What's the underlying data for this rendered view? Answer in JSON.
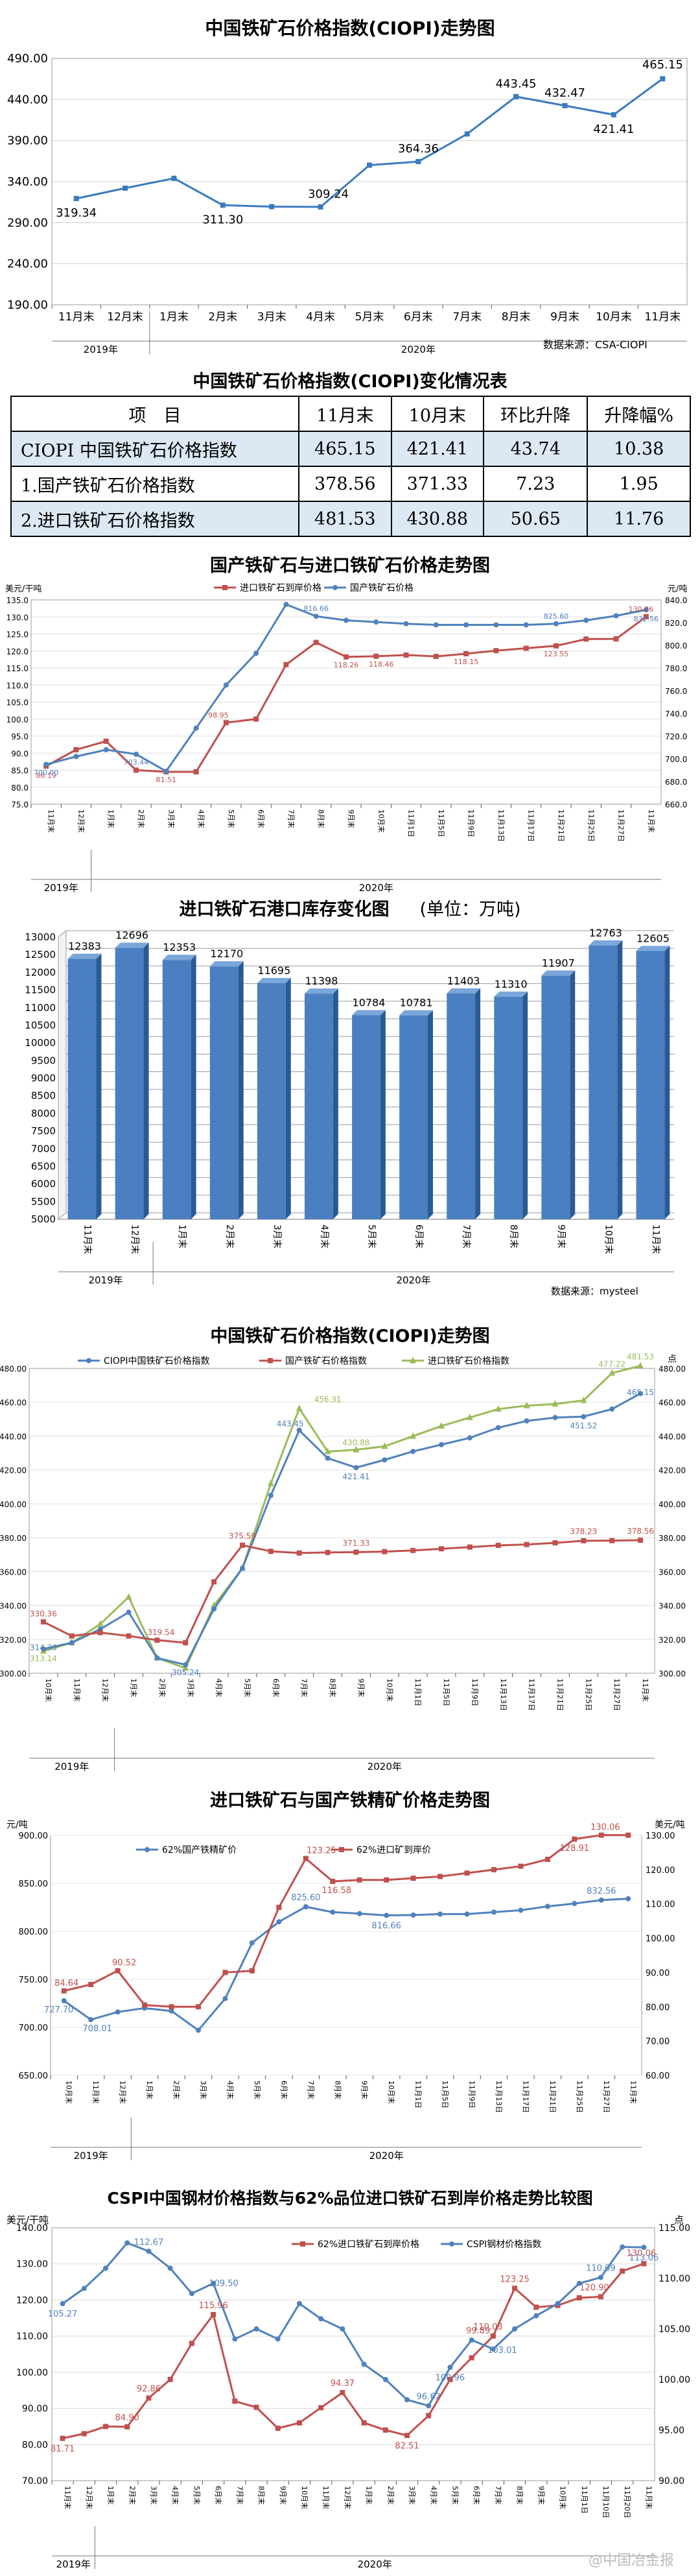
{
  "watermark": "@中国冶金报",
  "charts": {
    "c1": {
      "title": "中国铁矿石价格指数(CIOPI)走势图",
      "source": "数据来源：CSA-CIOPI",
      "years": [
        "2019年",
        "2020年"
      ]
    },
    "table": {
      "title": "中国铁矿石价格指数(CIOPI)变化情况表",
      "headers": [
        "项　目",
        "11月末",
        "10月末",
        "环比升降",
        "升降幅%"
      ],
      "rows": [
        [
          "CIOPI 中国铁矿石价格指数",
          "465.15",
          "421.41",
          "43.74",
          "10.38"
        ],
        [
          "1.国产铁矿石价格指数",
          "378.56",
          "371.33",
          "7.23",
          "1.95"
        ],
        [
          "2.进口铁矿石价格指数",
          "481.53",
          "430.88",
          "50.65",
          "11.76"
        ]
      ]
    },
    "c2": {
      "title": "国产铁矿石与进口铁矿石价格走势图",
      "left_unit": "美元/干吨",
      "right_unit": "元/吨",
      "years": [
        "2019年",
        "2020年"
      ]
    },
    "c3": {
      "title": "进口铁矿石港口库存变化图",
      "unit": "(单位：万吨)",
      "source": "数据来源：mysteel",
      "years": [
        "2019年",
        "2020年"
      ]
    },
    "c4": {
      "title": "中国铁矿石价格指数(CIOPI)走势图",
      "right_unit": "点",
      "years": [
        "2019年",
        "2020年"
      ]
    },
    "c5": {
      "title": "进口铁矿石与国产铁精矿价格走势图",
      "left_unit": "元/吨",
      "right_unit": "美元/吨",
      "years": [
        "2019年",
        "2020年"
      ]
    },
    "c6": {
      "title": "CSPI中国钢材价格指数与62%品位进口铁矿石到岸价格走势比较图",
      "left_unit": "美元/干吨",
      "right_unit": "点",
      "years": [
        "2019年",
        "2020年"
      ]
    }
  },
  "chart_data": [
    {
      "type": "line",
      "title": "中国铁矿石价格指数(CIOPI)走势图",
      "categories": [
        "11月末",
        "12月末",
        "1月末",
        "2月末",
        "3月末",
        "4月末",
        "5月末",
        "6月末",
        "7月末",
        "8月末",
        "9月末",
        "10月末",
        "11月末"
      ],
      "series": [
        {
          "name": "CIOPI",
          "values": [
            319.34,
            332,
            344,
            311.3,
            309.5,
            309.24,
            360,
            364.36,
            398,
            443.45,
            432.47,
            421.41,
            465.15
          ],
          "color": "#3a7abf"
        }
      ],
      "labels": [
        [
          0,
          "319.34"
        ],
        [
          3,
          "311.30"
        ],
        [
          5,
          "309.24"
        ],
        [
          7,
          "364.36"
        ],
        [
          9,
          "443.45"
        ],
        [
          10,
          "432.47"
        ],
        [
          11,
          "421.41"
        ],
        [
          12,
          "465.15"
        ]
      ],
      "ylim": [
        190,
        490
      ],
      "yticks": [
        "190.00",
        "240.00",
        "290.00",
        "340.00",
        "390.00",
        "440.00",
        "490.00"
      ]
    },
    {
      "type": "line",
      "title": "国产铁矿石与进口铁矿石价格走势图",
      "categories": [
        "11月末",
        "12月末",
        "1月末",
        "2月末",
        "3月末",
        "4月末",
        "5月末",
        "6月末",
        "7月末",
        "8月末",
        "9月末",
        "10月末",
        "11月1日",
        "11月5日",
        "11月9日",
        "11月13日",
        "11月17日",
        "11月21日",
        "11月25日",
        "11月27日",
        "11月末"
      ],
      "series": [
        {
          "name": "进口铁矿石到岸价格",
          "axis": "left",
          "color": "#c0504d",
          "values": [
            86.19,
            91,
            93.5,
            85,
            84.5,
            84.5,
            98.95,
            100,
            116,
            122.5,
            118.26,
            118.46,
            118.8,
            118.4,
            119.2,
            120.1,
            120.8,
            121.5,
            123.5,
            123.55,
            130.06
          ]
        },
        {
          "name": "国产铁矿石价格",
          "axis": "right",
          "color": "#4f81bd",
          "values": [
            695,
            702,
            708,
            704,
            689,
            727,
            765,
            793,
            836,
            825.6,
            822,
            820.5,
            819,
            818,
            818,
            818,
            818,
            819,
            822,
            826,
            831.3
          ]
        }
      ],
      "ylim_left": [
        75,
        135
      ],
      "ylim_right": [
        660,
        840
      ]
    },
    {
      "type": "bar",
      "title": "进口铁矿石港口库存变化图",
      "categories": [
        "11月末",
        "12月末",
        "1月末",
        "2月末",
        "3月末",
        "4月末",
        "5月末",
        "6月末",
        "7月末",
        "8月末",
        "9月末",
        "10月末",
        "11月末"
      ],
      "values": [
        12383,
        12696,
        12353,
        12170,
        11695,
        11398,
        10784,
        10781,
        11403,
        11310,
        11907,
        12763,
        12605
      ],
      "ylim": [
        5000,
        13000
      ]
    },
    {
      "type": "line",
      "title": "中国铁矿石价格指数(CIOPI)走势图",
      "categories": [
        "10月末",
        "11月末",
        "12月末",
        "1月末",
        "2月末",
        "3月末",
        "4月末",
        "5月末",
        "6月末",
        "7月末",
        "8月末",
        "9月末",
        "10月末",
        "11月1日",
        "11月5日",
        "11月9日",
        "11月13日",
        "11月17日",
        "11月21日",
        "11月25日",
        "11月27日",
        "11月末"
      ],
      "series": [
        {
          "name": "CIOPI中国铁矿石价格指数",
          "axis": "right",
          "color": "#4f81bd",
          "values": [
            314.33,
            318,
            326,
            336,
            309,
            305,
            338,
            362,
            405,
            443.45,
            427,
            421.41,
            426,
            431,
            435,
            439,
            445,
            449,
            451,
            451.52,
            456,
            465.15
          ]
        },
        {
          "name": "国产铁矿石价格指数",
          "axis": "left",
          "color": "#c0504d",
          "values": [
            330.36,
            322,
            324,
            322,
            319.54,
            318,
            354,
            375.59,
            372,
            371,
            371.33,
            371.5,
            371.8,
            372.5,
            373.5,
            374.5,
            375.5,
            376,
            377,
            378.23,
            378.3,
            378.56
          ]
        },
        {
          "name": "进口铁矿石价格指数",
          "axis": "right",
          "color": "#9bbb59",
          "values": [
            313.14,
            318,
            329,
            345,
            309,
            303,
            340,
            362,
            412,
            456.31,
            430.88,
            432,
            434,
            440,
            446,
            451,
            456,
            458,
            459,
            461.1,
            477.22,
            481.53
          ]
        }
      ],
      "ylim_left": [
        300,
        480
      ],
      "ylim_right": [
        300,
        480
      ]
    },
    {
      "type": "line",
      "title": "进口铁矿石与国产铁精矿价格走势图",
      "categories": [
        "10月末",
        "11月末",
        "12月末",
        "1月末",
        "2月末",
        "3月末",
        "4月末",
        "5月末",
        "6月末",
        "7月末",
        "8月末",
        "9月末",
        "10月末",
        "11月1日",
        "11月5日",
        "11月9日",
        "11月13日",
        "11月17日",
        "11月21日",
        "11月25日",
        "11月27日",
        "11月末"
      ],
      "series": [
        {
          "name": "62%国产铁精矿价",
          "axis": "left",
          "color": "#4f81bd",
          "values": [
            727.7,
            708.01,
            716,
            720,
            717,
            697,
            730,
            788,
            810,
            825.6,
            820,
            818.5,
            816.66,
            817,
            818,
            818,
            820,
            822,
            826,
            829,
            832.56,
            834
          ]
        },
        {
          "name": "62%进口矿到岸价",
          "axis": "right",
          "color": "#c0504d",
          "values": [
            84.64,
            86.5,
            90.52,
            80.5,
            80,
            80,
            90,
            90.5,
            109,
            123.25,
            116.58,
            117,
            117,
            117.5,
            118,
            119,
            120,
            121,
            123,
            128.91,
            130.06,
            130.06
          ]
        }
      ],
      "ylim_left": [
        650,
        900
      ],
      "ylim_right": [
        60,
        130
      ]
    },
    {
      "type": "line",
      "title": "CSPI中国钢材价格指数与62%品位进口铁矿石到岸价格走势比较图",
      "categories": [
        "11月末",
        "12月末",
        "1月末",
        "2月末",
        "3月末",
        "4月末",
        "5月末",
        "6月末",
        "7月末",
        "8月末",
        "9月末",
        "10月末",
        "11月末",
        "12月末",
        "1月末",
        "2月末",
        "3月末",
        "4月末",
        "5月末",
        "6月末",
        "7月末",
        "8月末",
        "9月末",
        "10月末",
        "11月1日",
        "11月10日",
        "11月20日",
        "11月末"
      ],
      "series": [
        {
          "name": "62%进口铁矿石到岸价格",
          "axis": "left",
          "color": "#c0504d",
          "values": [
            81.71,
            83,
            85,
            84.9,
            92.86,
            98,
            108,
            115.96,
            92,
            90.3,
            84.5,
            86,
            90.2,
            94.37,
            86,
            84,
            82.51,
            88,
            98,
            104,
            110.03,
            123.25,
            118,
            118.5,
            120.6,
            120.9,
            128,
            130.06
          ]
        },
        {
          "name": "CSPI钢材价格指数",
          "axis": "right",
          "color": "#4f81bd",
          "values": [
            107.5,
            109,
            111,
            113.5,
            112.67,
            111,
            108.5,
            109.5,
            104,
            105,
            104,
            107.5,
            106,
            105,
            101.5,
            100,
            98,
            97.4,
            101.2,
            103.9,
            103.01,
            105,
            106.3,
            107.5,
            109.5,
            110.09,
            113.1,
            113.06
          ]
        }
      ],
      "ylim_left": [
        70,
        140
      ],
      "ylim_right": [
        90,
        115
      ]
    }
  ]
}
